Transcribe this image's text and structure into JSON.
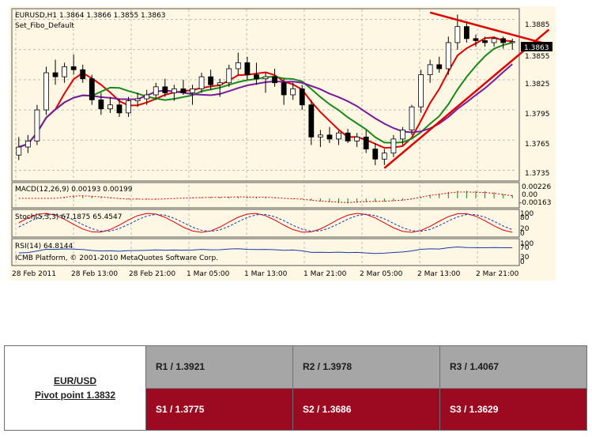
{
  "chart": {
    "header_line1": "EURUSD,H1  1.3864 1.3866 1.3855 1.3863",
    "header_line2": "Set_Fibo_Default",
    "price_labels": [
      "1.3885",
      "1.3855",
      "1.3825",
      "1.3795",
      "1.3765",
      "1.3735"
    ],
    "current_price": "1.3863",
    "macd_label": "MACD(12,26,9) 0.00193 0.00199",
    "macd_scale": [
      "0.00226",
      "0.00",
      "-0.00163"
    ],
    "stoch_label": "Stoch(5,3,3) 67.1875 65.4547",
    "stoch_scale": [
      "100",
      "80",
      "20",
      "0"
    ],
    "rsi_label": "RSI(14) 64.8144",
    "rsi_scale": [
      "100",
      "70",
      "30",
      "0"
    ],
    "copyright": "ICMB Platform, © 2001-2010 MetaQuotes Software Corp.",
    "time_labels": [
      "28 Feb 2011",
      "28 Feb 13:00",
      "28 Feb 21:00",
      "1 Mar 05:00",
      "1 Mar 13:00",
      "1 Mar 21:00",
      "2 Mar 05:00",
      "2 Mar 13:00",
      "2 Mar 21:00"
    ],
    "colors": {
      "background": "#fdf7e4",
      "ma_fast": "#e00000",
      "ma_mid": "#1a8a1a",
      "ma_slow": "#7a1a9a",
      "trendline": "#e00000"
    }
  },
  "chart_data": {
    "type": "candlestick",
    "symbol": "EURUSD",
    "timeframe": "H1",
    "ylim": [
      1.3725,
      1.3895
    ],
    "candles": [
      [
        1.375,
        1.3768,
        1.3745,
        1.3758
      ],
      [
        1.3758,
        1.377,
        1.3752,
        1.3764
      ],
      [
        1.3764,
        1.38,
        1.376,
        1.3795
      ],
      [
        1.3795,
        1.3838,
        1.379,
        1.3832
      ],
      [
        1.3832,
        1.3845,
        1.382,
        1.3828
      ],
      [
        1.3828,
        1.3842,
        1.3822,
        1.3838
      ],
      [
        1.3838,
        1.385,
        1.383,
        1.3835
      ],
      [
        1.3835,
        1.384,
        1.3822,
        1.3826
      ],
      [
        1.3826,
        1.383,
        1.38,
        1.3805
      ],
      [
        1.3805,
        1.3812,
        1.379,
        1.3796
      ],
      [
        1.3796,
        1.3808,
        1.3792,
        1.38
      ],
      [
        1.38,
        1.3806,
        1.3788,
        1.3792
      ],
      [
        1.3792,
        1.3808,
        1.3788,
        1.3804
      ],
      [
        1.3804,
        1.3812,
        1.3798,
        1.3806
      ],
      [
        1.3806,
        1.3815,
        1.38,
        1.381
      ],
      [
        1.381,
        1.3822,
        1.3805,
        1.3818
      ],
      [
        1.3818,
        1.3826,
        1.3808,
        1.3812
      ],
      [
        1.3812,
        1.382,
        1.3804,
        1.3816
      ],
      [
        1.3816,
        1.3825,
        1.381,
        1.3812
      ],
      [
        1.3812,
        1.382,
        1.38,
        1.3816
      ],
      [
        1.3816,
        1.3832,
        1.3812,
        1.3828
      ],
      [
        1.3828,
        1.3835,
        1.3815,
        1.382
      ],
      [
        1.382,
        1.3826,
        1.3808,
        1.3822
      ],
      [
        1.3822,
        1.384,
        1.3818,
        1.3836
      ],
      [
        1.3836,
        1.3852,
        1.383,
        1.3842
      ],
      [
        1.3842,
        1.3848,
        1.3825,
        1.383
      ],
      [
        1.383,
        1.3842,
        1.382,
        1.3826
      ],
      [
        1.3826,
        1.3832,
        1.3812,
        1.3828
      ],
      [
        1.3828,
        1.3836,
        1.3818,
        1.3822
      ],
      [
        1.3822,
        1.3826,
        1.38,
        1.381
      ],
      [
        1.381,
        1.3822,
        1.3805,
        1.3816
      ],
      [
        1.3816,
        1.382,
        1.3795,
        1.38
      ],
      [
        1.38,
        1.3805,
        1.376,
        1.3768
      ],
      [
        1.3768,
        1.3775,
        1.3758,
        1.377
      ],
      [
        1.377,
        1.3778,
        1.3762,
        1.3766
      ],
      [
        1.3766,
        1.3774,
        1.376,
        1.3772
      ],
      [
        1.3772,
        1.3776,
        1.3762,
        1.3764
      ],
      [
        1.3764,
        1.3772,
        1.3758,
        1.3768
      ],
      [
        1.3768,
        1.3775,
        1.3752,
        1.3756
      ],
      [
        1.3756,
        1.3762,
        1.374,
        1.3746
      ],
      [
        1.3746,
        1.3756,
        1.374,
        1.3752
      ],
      [
        1.3752,
        1.377,
        1.3748,
        1.3766
      ],
      [
        1.3766,
        1.3778,
        1.376,
        1.3775
      ],
      [
        1.3775,
        1.38,
        1.377,
        1.3798
      ],
      [
        1.3798,
        1.3835,
        1.3792,
        1.383
      ],
      [
        1.383,
        1.3845,
        1.3822,
        1.384
      ],
      [
        1.384,
        1.3848,
        1.3832,
        1.3836
      ],
      [
        1.3836,
        1.3868,
        1.383,
        1.3862
      ],
      [
        1.3862,
        1.389,
        1.3855,
        1.3878
      ],
      [
        1.3878,
        1.3882,
        1.3862,
        1.3866
      ],
      [
        1.3866,
        1.387,
        1.3858,
        1.3864
      ],
      [
        1.3864,
        1.3868,
        1.3858,
        1.3862
      ],
      [
        1.3862,
        1.3868,
        1.3858,
        1.3866
      ],
      [
        1.3866,
        1.3868,
        1.3856,
        1.3862
      ],
      [
        1.3862,
        1.3866,
        1.3855,
        1.3863
      ]
    ],
    "trendlines": [
      {
        "name": "upper",
        "from": [
          45,
          1.3892
        ],
        "to": [
          58,
          1.386
        ]
      },
      {
        "name": "lower",
        "from": [
          40,
          1.3737
        ],
        "to": [
          58,
          1.3875
        ]
      }
    ]
  },
  "pivot": {
    "pair": "EUR/USD",
    "pivot_point": "Pivot point 1.3832",
    "resistance": [
      "R1 / 1.3921",
      "R2 / 1.3978",
      "R3 / 1.4067"
    ],
    "support": [
      "S1 / 1.3775",
      "S2 / 1.3686",
      "S3 / 1.3629"
    ],
    "colors": {
      "resistance_bg": "#a6a6a6",
      "support_bg": "#9c0a22"
    }
  }
}
